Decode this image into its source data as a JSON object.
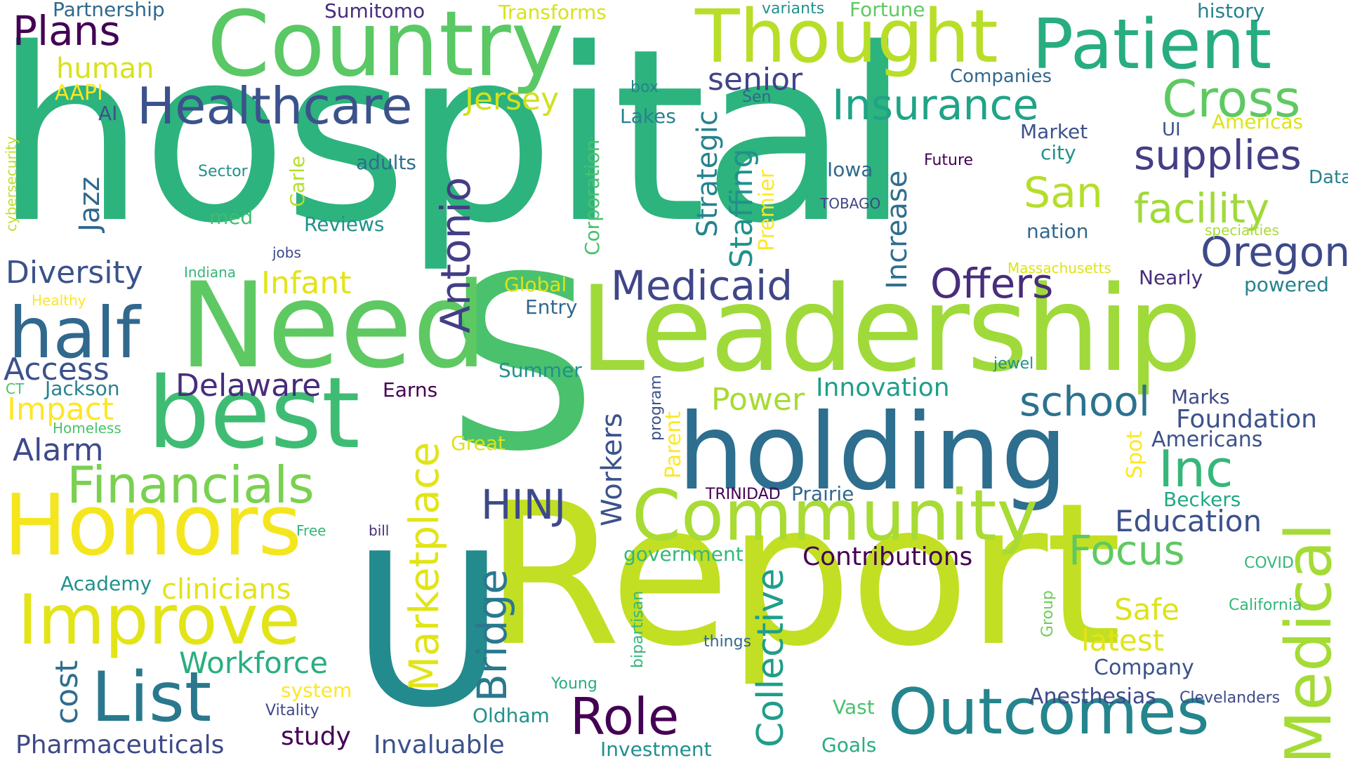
{
  "palette": {
    "dark_purple": "#440154",
    "indigo": "#3b528b",
    "steel_blue": "#31688e",
    "teal": "#21918c",
    "sea_green": "#27ad81",
    "green": "#3fbc73",
    "light_green": "#5ec962",
    "lime": "#b5de2b",
    "yellow": "#fde725",
    "bright_yellow": "#e5e419"
  },
  "words": [
    {
      "text": "hospital",
      "color": "#2db37e"
    },
    {
      "text": "Report",
      "color": "#c2df23"
    },
    {
      "text": "S",
      "color": "#4ac16d"
    },
    {
      "text": "U",
      "color": "#238a8d"
    },
    {
      "text": "Leadership",
      "color": "#9fda3a"
    },
    {
      "text": "Need",
      "color": "#5ec962"
    },
    {
      "text": "best",
      "color": "#3fbc73"
    },
    {
      "text": "Honors",
      "color": "#f4e61e"
    },
    {
      "text": "holding",
      "color": "#2e6e8e"
    },
    {
      "text": "Community",
      "color": "#a8db34"
    },
    {
      "text": "Country",
      "color": "#5ac864"
    },
    {
      "text": "Thought",
      "color": "#b8de29"
    },
    {
      "text": "Patient",
      "color": "#27ad81"
    },
    {
      "text": "Improve",
      "color": "#e2e418"
    },
    {
      "text": "List",
      "color": "#2a788e"
    },
    {
      "text": "Outcomes",
      "color": "#25858e"
    },
    {
      "text": "Medical",
      "color": "#a5db36"
    },
    {
      "text": "half",
      "color": "#31688e"
    },
    {
      "text": "Financials",
      "color": "#7ad151"
    },
    {
      "text": "Healthcare",
      "color": "#3b528b"
    },
    {
      "text": "Cross",
      "color": "#5ec962"
    },
    {
      "text": "Insurance",
      "color": "#20a386"
    },
    {
      "text": "supplies",
      "color": "#433e85"
    },
    {
      "text": "facility",
      "color": "#a0da39"
    },
    {
      "text": "Oregon",
      "color": "#3e4989"
    },
    {
      "text": "Medicaid",
      "color": "#404688"
    },
    {
      "text": "Offers",
      "color": "#472d7b"
    },
    {
      "text": "Inc",
      "color": "#35b779"
    },
    {
      "text": "school",
      "color": "#2c728e"
    },
    {
      "text": "Role",
      "color": "#440154"
    },
    {
      "text": "San",
      "color": "#b5de2b"
    },
    {
      "text": "Antonio",
      "color": "#433e85"
    },
    {
      "text": "Marketplace",
      "color": "#e2e418"
    },
    {
      "text": "Bridge",
      "color": "#2a788e"
    },
    {
      "text": "HINJ",
      "color": "#3e4989"
    },
    {
      "text": "Focus",
      "color": "#5ec962"
    },
    {
      "text": "Collective",
      "color": "#1f9e89"
    },
    {
      "text": "Plans",
      "color": "#440154"
    },
    {
      "text": "Diversity",
      "color": "#3b528b"
    },
    {
      "text": "Access",
      "color": "#3b528b"
    },
    {
      "text": "Impact",
      "color": "#fde725"
    },
    {
      "text": "Alarm",
      "color": "#3e4989"
    },
    {
      "text": "Delaware",
      "color": "#472d7b"
    },
    {
      "text": "Jersey",
      "color": "#d0e11c"
    },
    {
      "text": "human",
      "color": "#d8e219"
    },
    {
      "text": "senior",
      "color": "#414487"
    },
    {
      "text": "Power",
      "color": "#a8db34"
    },
    {
      "text": "Innovation",
      "color": "#1f9e89"
    },
    {
      "text": "Education",
      "color": "#3b528b"
    },
    {
      "text": "Foundation",
      "color": "#3b528b"
    },
    {
      "text": "Contributions",
      "color": "#440154"
    },
    {
      "text": "Workforce",
      "color": "#29af7f"
    },
    {
      "text": "clinicians",
      "color": "#e2e418"
    },
    {
      "text": "Infant",
      "color": "#e2e418"
    },
    {
      "text": "cost",
      "color": "#2e6e8e"
    },
    {
      "text": "Pharmaceuticals",
      "color": "#3e4989"
    },
    {
      "text": "study",
      "color": "#440154"
    },
    {
      "text": "Invaluable",
      "color": "#3b528b"
    },
    {
      "text": "Investment",
      "color": "#21918c"
    },
    {
      "text": "Safe",
      "color": "#dde318"
    },
    {
      "text": "latest",
      "color": "#e2e418"
    },
    {
      "text": "Anesthesias",
      "color": "#3e4989"
    },
    {
      "text": "Company",
      "color": "#3b528b"
    },
    {
      "text": "Staffing",
      "color": "#21918c"
    },
    {
      "text": "Strategic",
      "color": "#26828e"
    },
    {
      "text": "Increase",
      "color": "#2e6e8e"
    },
    {
      "text": "Workers",
      "color": "#3b528b"
    },
    {
      "text": "Jazz",
      "color": "#31688e"
    },
    {
      "text": "Corporation",
      "color": "#4ac16d"
    },
    {
      "text": "Premier",
      "color": "#fde725"
    },
    {
      "text": "Parent",
      "color": "#fde725"
    },
    {
      "text": "Spot",
      "color": "#fde725"
    },
    {
      "text": "Americans",
      "color": "#3b528b"
    },
    {
      "text": "Beckers",
      "color": "#22a884"
    },
    {
      "text": "Reviews",
      "color": "#21918c"
    },
    {
      "text": "adults",
      "color": "#2e6e8e"
    },
    {
      "text": "Carle",
      "color": "#b5de2b"
    },
    {
      "text": "med",
      "color": "#3fbc73"
    },
    {
      "text": "Sector",
      "color": "#21918c"
    },
    {
      "text": "Academy",
      "color": "#21918c"
    },
    {
      "text": "system",
      "color": "#fde725"
    },
    {
      "text": "Vitality",
      "color": "#3e4989"
    },
    {
      "text": "Oldham",
      "color": "#21918c"
    },
    {
      "text": "Young",
      "color": "#27ad81"
    },
    {
      "text": "Goals",
      "color": "#27ad81"
    },
    {
      "text": "Vast",
      "color": "#4ac16d"
    },
    {
      "text": "Clevelanders",
      "color": "#3e4989"
    },
    {
      "text": "government",
      "color": "#35b779"
    },
    {
      "text": "things",
      "color": "#31688e"
    },
    {
      "text": "bipartisan",
      "color": "#35b779"
    },
    {
      "text": "Group",
      "color": "#6ece58"
    },
    {
      "text": "California",
      "color": "#35b779"
    },
    {
      "text": "COVID",
      "color": "#35b779"
    },
    {
      "text": "Prairie",
      "color": "#31688e"
    },
    {
      "text": "TRINIDAD",
      "color": "#440154"
    },
    {
      "text": "program",
      "color": "#3b528b"
    },
    {
      "text": "Great",
      "color": "#dde318"
    },
    {
      "text": "Earns",
      "color": "#440154"
    },
    {
      "text": "Summer",
      "color": "#21918c"
    },
    {
      "text": "jewel",
      "color": "#21918c"
    },
    {
      "text": "Marks",
      "color": "#3e4989"
    },
    {
      "text": "Entry",
      "color": "#31688e"
    },
    {
      "text": "Global",
      "color": "#dde318"
    },
    {
      "text": "Nearly",
      "color": "#472d7b"
    },
    {
      "text": "powered",
      "color": "#26828e"
    },
    {
      "text": "Massachusetts",
      "color": "#dde318"
    },
    {
      "text": "nation",
      "color": "#31688e"
    },
    {
      "text": "specialties",
      "color": "#a8db34"
    },
    {
      "text": "Data",
      "color": "#26828e"
    },
    {
      "text": "Americas",
      "color": "#dde318"
    },
    {
      "text": "UI",
      "color": "#3b528b"
    },
    {
      "text": "city",
      "color": "#21918c"
    },
    {
      "text": "Market",
      "color": "#3b528b"
    },
    {
      "text": "Companies",
      "color": "#31688e"
    },
    {
      "text": "Future",
      "color": "#440154"
    },
    {
      "text": "TOBAGO",
      "color": "#414487"
    },
    {
      "text": "Iowa",
      "color": "#31688e"
    },
    {
      "text": "Sen",
      "color": "#31688e"
    },
    {
      "text": "Lakes",
      "color": "#26828e"
    },
    {
      "text": "box",
      "color": "#26828e"
    },
    {
      "text": "AI",
      "color": "#3b528b"
    },
    {
      "text": "AAPI",
      "color": "#fde725"
    },
    {
      "text": "Sumitomo",
      "color": "#472d7b"
    },
    {
      "text": "Transforms",
      "color": "#d8e219"
    },
    {
      "text": "Partnership",
      "color": "#31688e"
    },
    {
      "text": "variants",
      "color": "#21918c"
    },
    {
      "text": "Fortune",
      "color": "#5ec962"
    },
    {
      "text": "history",
      "color": "#26828e"
    },
    {
      "text": "cybersecurity",
      "color": "#bddf26"
    },
    {
      "text": "jobs",
      "color": "#3e4989"
    },
    {
      "text": "Indiana",
      "color": "#35b779"
    },
    {
      "text": "Healthy",
      "color": "#fde725"
    },
    {
      "text": "CT",
      "color": "#4ac16d"
    },
    {
      "text": "Jackson",
      "color": "#26828e"
    },
    {
      "text": "Homeless",
      "color": "#4ac16d"
    },
    {
      "text": "Free",
      "color": "#35b779"
    },
    {
      "text": "bill",
      "color": "#472d7b"
    }
  ]
}
